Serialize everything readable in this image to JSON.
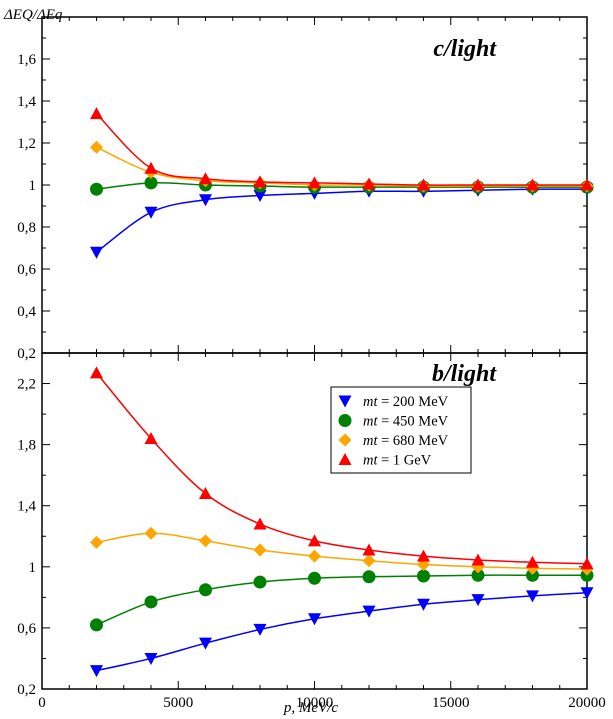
{
  "chart_data": [
    {
      "type": "line",
      "title": "c/light",
      "ylabel": "ΔEQ/ΔEq",
      "xlabel": "",
      "xlim": [
        0,
        20000
      ],
      "ylim": [
        0.2,
        1.8
      ],
      "y_ticks": [
        0.2,
        0.4,
        0.6,
        0.8,
        1.0,
        1.2,
        1.4,
        1.6
      ],
      "y_tick_labels": [
        "0,2",
        "0,4",
        "0,6",
        "0,8",
        "1",
        "1,2",
        "1,4",
        "1,6"
      ],
      "x": [
        2000,
        4000,
        6000,
        8000,
        10000,
        12000,
        14000,
        16000,
        18000,
        20000
      ],
      "series": [
        {
          "name": "mt = 200 MeV",
          "color": "#0000ff",
          "marker": "triangle-down",
          "values": [
            0.68,
            0.87,
            0.93,
            0.95,
            0.96,
            0.97,
            0.97,
            0.975,
            0.98,
            0.98
          ]
        },
        {
          "name": "mt = 450 MeV",
          "color": "#008000",
          "marker": "circle",
          "values": [
            0.98,
            1.01,
            1.0,
            0.995,
            0.99,
            0.99,
            0.99,
            0.99,
            0.99,
            0.99
          ]
        },
        {
          "name": "mt = 680 MeV",
          "color": "#ffa500",
          "marker": "diamond",
          "values": [
            1.18,
            1.06,
            1.02,
            1.01,
            1.0,
            1.0,
            0.995,
            0.995,
            0.995,
            0.995
          ]
        },
        {
          "name": "mt = 1 GeV",
          "color": "#ff0000",
          "marker": "triangle-up",
          "values": [
            1.34,
            1.08,
            1.03,
            1.015,
            1.01,
            1.005,
            1.0,
            1.0,
            1.0,
            1.0
          ]
        }
      ]
    },
    {
      "type": "line",
      "title": "b/light",
      "ylabel": "",
      "xlabel": "p, MeV/c",
      "xlim": [
        0,
        20000
      ],
      "ylim": [
        0.2,
        2.4
      ],
      "x_ticks": [
        0,
        5000,
        10000,
        15000,
        20000
      ],
      "x_tick_labels": [
        "0",
        "5000",
        "10000",
        "15000",
        "20000"
      ],
      "y_ticks": [
        0.2,
        0.6,
        1.0,
        1.4,
        1.8,
        2.2
      ],
      "y_tick_labels": [
        "0,2",
        "0,6",
        "1",
        "1,4",
        "1,8",
        "2,2"
      ],
      "legend_position": "upper-right",
      "x": [
        2000,
        4000,
        6000,
        8000,
        10000,
        12000,
        14000,
        16000,
        18000,
        20000
      ],
      "series": [
        {
          "name": "mt = 200 MeV",
          "legend_var": "mt",
          "legend_rest": " = 200 MeV",
          "color": "#0000ff",
          "marker": "triangle-down",
          "values": [
            0.32,
            0.4,
            0.5,
            0.59,
            0.66,
            0.71,
            0.755,
            0.785,
            0.81,
            0.83
          ]
        },
        {
          "name": "mt = 450 MeV",
          "legend_var": "mt",
          "legend_rest": " = 450 MeV",
          "color": "#008000",
          "marker": "circle",
          "values": [
            0.62,
            0.77,
            0.85,
            0.9,
            0.925,
            0.935,
            0.94,
            0.945,
            0.945,
            0.945
          ]
        },
        {
          "name": "mt = 680 MeV",
          "legend_var": "mt",
          "legend_rest": " = 680 MeV",
          "color": "#ffa500",
          "marker": "diamond",
          "values": [
            1.16,
            1.22,
            1.17,
            1.11,
            1.07,
            1.04,
            1.015,
            1.0,
            0.99,
            0.985
          ]
        },
        {
          "name": "mt = 1 GeV",
          "legend_var": "mt",
          "legend_rest": " = 1 GeV",
          "color": "#ff0000",
          "marker": "triangle-up",
          "values": [
            2.27,
            1.84,
            1.48,
            1.28,
            1.17,
            1.11,
            1.07,
            1.045,
            1.03,
            1.02
          ]
        }
      ]
    }
  ]
}
